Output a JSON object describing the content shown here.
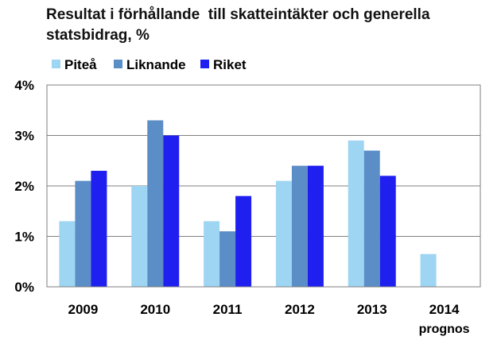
{
  "chart_data": {
    "type": "bar",
    "title_line1": "Resultat i förhållande  till skatteintäkter och generella",
    "title_line2": "statsbidrag, %",
    "categories": [
      "2009",
      "2010",
      "2011",
      "2012",
      "2013",
      "2014"
    ],
    "category_sublabels": [
      "",
      "",
      "",
      "",
      "",
      "prognos"
    ],
    "series": [
      {
        "name": "Piteå",
        "color": "#9dd5f3",
        "values": [
          1.3,
          2.0,
          1.3,
          2.1,
          2.9,
          0.65
        ]
      },
      {
        "name": "Liknande",
        "color": "#5b8dc7",
        "values": [
          2.1,
          3.3,
          1.1,
          2.4,
          2.7,
          null
        ]
      },
      {
        "name": "Riket",
        "color": "#1f1ff0",
        "values": [
          2.3,
          3.0,
          1.8,
          2.4,
          2.2,
          null
        ]
      }
    ],
    "y_ticks": [
      "0%",
      "1%",
      "2%",
      "3%",
      "4%"
    ],
    "y_tick_values": [
      0,
      1,
      2,
      3,
      4
    ],
    "ylim": [
      0,
      4
    ],
    "grid": true,
    "legend_position": "top-left"
  }
}
